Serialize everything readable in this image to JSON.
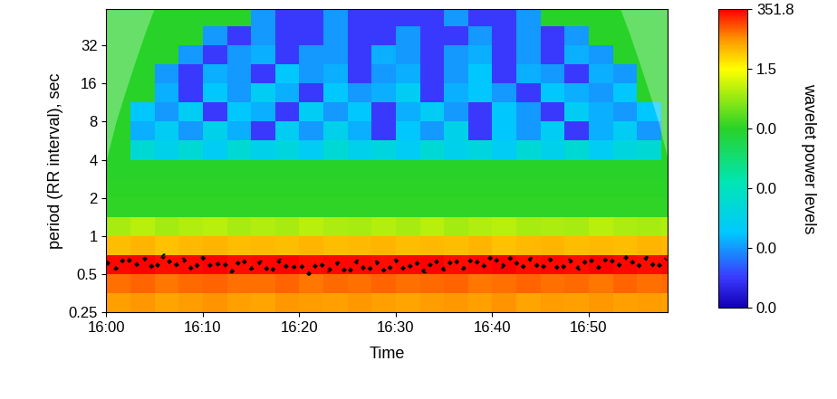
{
  "chart_data": {
    "type": "heatmap",
    "xlabel": "Time",
    "ylabel": "period (RR interval), sec",
    "colorbar_label": "wavelet power levels",
    "log": "y",
    "xlim": [
      0,
      58.2
    ],
    "xticks": [
      {
        "value": 0,
        "label": "16:00"
      },
      {
        "value": 10,
        "label": "16:10"
      },
      {
        "value": 20,
        "label": "16:20"
      },
      {
        "value": 30,
        "label": "16:30"
      },
      {
        "value": 40,
        "label": "16:40"
      },
      {
        "value": 50,
        "label": "16:50"
      }
    ],
    "ylim": [
      0.25,
      62
    ],
    "yticks": [
      0.25,
      0.5,
      1,
      2,
      4,
      8,
      16,
      32
    ],
    "time_edges": [
      0,
      2.5,
      5,
      7.5,
      10,
      12.5,
      15,
      17.5,
      20,
      22.5,
      25,
      27.5,
      30,
      32.5,
      35,
      37.5,
      40,
      42.5,
      45,
      47.5,
      50,
      52.5,
      55,
      57.5,
      60
    ],
    "period_edges": [
      0.25,
      0.354,
      0.5,
      0.707,
      1,
      1.414,
      2,
      2.828,
      4,
      5.657,
      8,
      11.31,
      16,
      22.63,
      32,
      45.25,
      64
    ],
    "cells": [
      [
        160,
        170,
        150,
        165,
        175,
        160,
        150,
        170,
        165,
        155,
        170,
        160,
        150,
        165,
        170,
        160,
        175,
        150,
        165,
        160,
        170,
        155,
        165,
        160
      ],
      [
        220,
        230,
        210,
        225,
        235,
        215,
        220,
        230,
        210,
        225,
        220,
        230,
        215,
        225,
        235,
        210,
        220,
        230,
        215,
        225,
        210,
        230,
        220,
        225
      ],
      [
        340,
        345,
        335,
        340,
        348,
        338,
        342,
        345,
        336,
        340,
        344,
        338,
        342,
        346,
        335,
        340,
        345,
        338,
        342,
        336,
        345,
        340,
        338,
        344
      ],
      [
        110,
        120,
        105,
        115,
        125,
        110,
        118,
        112,
        120,
        108,
        115,
        122,
        110,
        118,
        112,
        120,
        105,
        115,
        125,
        110,
        118,
        112,
        120,
        115
      ],
      [
        0.9,
        1.0,
        0.85,
        0.95,
        1.0,
        0.9,
        0.95,
        0.88,
        1.0,
        0.92,
        0.9,
        0.97,
        0.9,
        1.0,
        0.86,
        0.95,
        1.0,
        0.9,
        0.93,
        0.88,
        1.0,
        0.92,
        0.9,
        0.95
      ],
      [
        0.1,
        0.1,
        0.1,
        0.1,
        0.1,
        0.1,
        0.1,
        0.1,
        0.1,
        0.1,
        0.1,
        0.1,
        0.1,
        0.1,
        0.1,
        0.1,
        0.1,
        0.1,
        0.1,
        0.1,
        0.1,
        0.1,
        0.1,
        0.1
      ],
      [
        0.06,
        0.06,
        0.06,
        0.06,
        0.06,
        0.06,
        0.06,
        0.06,
        0.06,
        0.06,
        0.06,
        0.06,
        0.06,
        0.06,
        0.06,
        0.06,
        0.06,
        0.06,
        0.06,
        0.06,
        0.06,
        0.06,
        0.06,
        0.06
      ],
      [
        0.04,
        0.04,
        0.04,
        0.04,
        0.04,
        0.04,
        0.04,
        0.04,
        0.04,
        0.04,
        0.04,
        0.04,
        0.04,
        0.04,
        0.04,
        0.04,
        0.04,
        0.04,
        0.04,
        0.04,
        0.04,
        0.04,
        0.04,
        0.04
      ],
      [
        0.04,
        0.008,
        0.006,
        0.008,
        0.005,
        0.008,
        0.006,
        0.007,
        0.005,
        0.008,
        0.006,
        0.007,
        0.005,
        0.008,
        0.006,
        0.007,
        0.005,
        0.008,
        0.006,
        0.008,
        0.005,
        0.007,
        0.008,
        0.04
      ],
      [
        0.04,
        0.003,
        0.005,
        0.002,
        0.006,
        0.003,
        0.001,
        0.005,
        0.002,
        0.006,
        0.003,
        0.001,
        0.004,
        0.002,
        0.006,
        0.001,
        0.004,
        0.002,
        0.005,
        0.001,
        0.003,
        0.005,
        0.002,
        0.04
      ],
      [
        0.04,
        0.004,
        0.002,
        0.005,
        0.001,
        0.004,
        0.003,
        0.001,
        0.005,
        0.002,
        0.004,
        0.001,
        0.003,
        0.005,
        0.002,
        0.001,
        0.004,
        0.002,
        0.001,
        0.005,
        0.003,
        0.002,
        0.004,
        0.04
      ],
      [
        0.04,
        0.04,
        0.003,
        0.001,
        0.004,
        0.002,
        0.005,
        0.003,
        0.001,
        0.004,
        0.002,
        0.003,
        0.005,
        0.001,
        0.003,
        0.004,
        0.002,
        0.001,
        0.004,
        0.003,
        0.002,
        0.004,
        0.04,
        0.04
      ],
      [
        0.04,
        0.04,
        0.002,
        0.001,
        0.003,
        0.002,
        0.001,
        0.004,
        0.002,
        0.003,
        0.001,
        0.002,
        0.003,
        0.001,
        0.002,
        0.004,
        0.001,
        0.003,
        0.002,
        0.001,
        0.003,
        0.002,
        0.04,
        0.04
      ],
      [
        0.04,
        0.04,
        0.04,
        0.002,
        0.001,
        0.002,
        0.003,
        0.001,
        0.002,
        0.002,
        0.001,
        0.003,
        0.002,
        0.001,
        0.002,
        0.003,
        0.001,
        0.002,
        0.001,
        0.003,
        0.002,
        0.04,
        0.04,
        0.04
      ],
      [
        0.04,
        0.04,
        0.04,
        0.04,
        0.002,
        0.001,
        0.002,
        0.001,
        0.001,
        0.002,
        0.001,
        0.001,
        0.002,
        0.001,
        0.001,
        0.002,
        0.001,
        0.002,
        0.001,
        0.002,
        0.04,
        0.04,
        0.04,
        0.04
      ],
      [
        0.04,
        0.04,
        0.04,
        0.04,
        0.04,
        0.04,
        0.002,
        0.001,
        0.001,
        0.002,
        0.001,
        0.001,
        0.001,
        0.001,
        0.002,
        0.001,
        0.001,
        0.002,
        0.04,
        0.04,
        0.04,
        0.04,
        0.04,
        0.04
      ]
    ],
    "colorbar_range": [
      0,
      351.8
    ],
    "colorbar_ticks": [
      {
        "value": 0,
        "label": "0.0"
      },
      {
        "value": 0.002,
        "label": "0.0"
      },
      {
        "value": 0.01,
        "label": "0.0"
      },
      {
        "value": 0.04,
        "label": "0.0"
      },
      1.5,
      351.8
    ],
    "coi": {
      "x": [
        0,
        1,
        2,
        3,
        4,
        5,
        53.2,
        54.2,
        55.2,
        56.2,
        57.2,
        58.2
      ],
      "period": [
        4,
        8,
        14,
        24,
        40,
        64,
        64,
        40,
        24,
        14,
        8,
        4
      ]
    },
    "rr_interval": {
      "color": "black",
      "line_style": "dotted",
      "x": [
        0,
        1,
        2,
        3,
        4,
        5,
        6,
        7,
        8,
        9,
        10,
        11,
        12,
        13,
        14,
        15,
        16,
        17,
        18,
        19,
        20,
        21,
        22,
        23,
        24,
        25,
        26,
        27,
        28,
        29,
        30,
        31,
        32,
        33,
        34,
        35,
        36,
        37,
        38,
        39,
        40,
        41,
        42,
        43,
        44,
        45,
        46,
        47,
        48,
        49,
        50,
        51,
        52,
        53,
        54,
        55,
        56,
        57,
        58
      ],
      "values": [
        0.62,
        0.55,
        0.68,
        0.58,
        0.66,
        0.54,
        0.7,
        0.57,
        0.65,
        0.53,
        0.67,
        0.56,
        0.63,
        0.52,
        0.66,
        0.55,
        0.62,
        0.51,
        0.64,
        0.54,
        0.6,
        0.5,
        0.62,
        0.53,
        0.61,
        0.5,
        0.63,
        0.52,
        0.62,
        0.51,
        0.64,
        0.53,
        0.63,
        0.52,
        0.65,
        0.54,
        0.66,
        0.55,
        0.67,
        0.56,
        0.7,
        0.57,
        0.68,
        0.55,
        0.66,
        0.54,
        0.65,
        0.53,
        0.64,
        0.55,
        0.67,
        0.56,
        0.68,
        0.57,
        0.69,
        0.56,
        0.67,
        0.55,
        0.66
      ]
    }
  }
}
